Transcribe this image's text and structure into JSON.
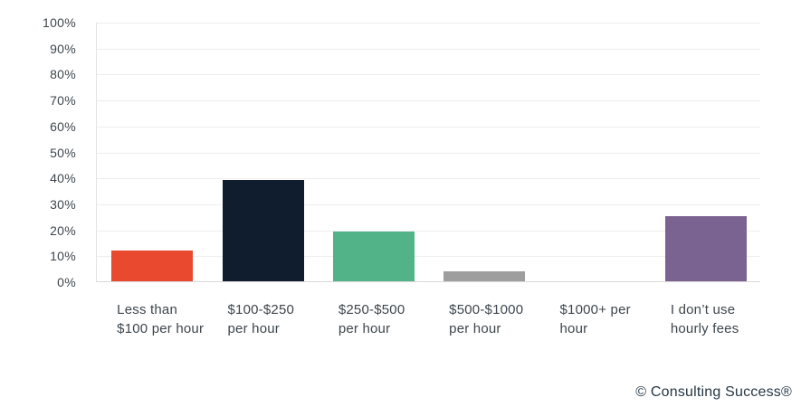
{
  "chart_data": {
    "type": "bar",
    "categories": [
      "Less than $100 per hour",
      "$100-$250 per hour",
      "$250-$500 per hour",
      "$500-$1000 per hour",
      "$1000+ per hour",
      "I don’t use hourly fees"
    ],
    "values": [
      12,
      39,
      19,
      4,
      0,
      25
    ],
    "bar_colors": [
      "#e8492f",
      "#101d2f",
      "#52b389",
      "#9e9e9e",
      null,
      "#7b6391"
    ],
    "title": "",
    "xlabel": "",
    "ylabel": "",
    "ylim": [
      0,
      100
    ],
    "ytick_step": 10,
    "yticks": [
      "100%",
      "90%",
      "80%",
      "70%",
      "60%",
      "50%",
      "40%",
      "30%",
      "20%",
      "10%",
      "0%"
    ],
    "grid": true,
    "legend": false,
    "gridline_color": "#eeeeee",
    "axis_text_color": "#3d464d"
  },
  "footer": {
    "copyright": "© Consulting Success®"
  }
}
